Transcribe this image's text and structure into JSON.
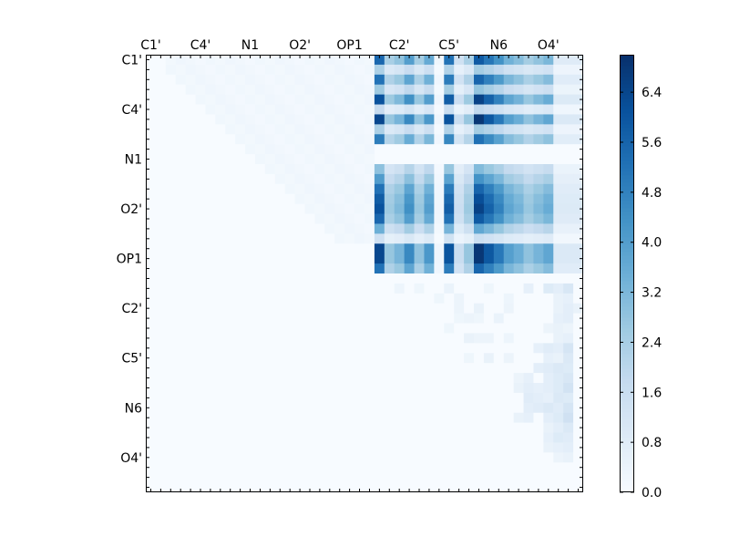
{
  "chart_data": {
    "type": "heatmap",
    "title": "",
    "xlabel": "",
    "ylabel": "",
    "n_rows": 44,
    "n_cols": 44,
    "x_tick_labels": [
      "C1'",
      "C4'",
      "N1",
      "O2'",
      "OP1",
      "C2'",
      "C5'",
      "N6",
      "O4'"
    ],
    "y_tick_labels": [
      "C1'",
      "C4'",
      "N1",
      "O2'",
      "OP1",
      "C2'",
      "C5'",
      "N6",
      "O4'"
    ],
    "tick_indices": [
      0,
      5,
      10,
      15,
      20,
      25,
      30,
      35,
      40
    ],
    "x_tick_position": "top",
    "colormap": "Blues",
    "colormap_low": "#f7fbff",
    "colormap_high": "#08306b",
    "colorbar": {
      "range": [
        0.0,
        7.0
      ],
      "ticks": [
        "0.0",
        "0.8",
        "1.6",
        "2.4",
        "3.2",
        "4.0",
        "4.8",
        "5.6",
        "6.4"
      ],
      "position": "right"
    },
    "grid": false,
    "main_block": {
      "rows": [
        0,
        21
      ],
      "cols": [
        23,
        40
      ],
      "column_pattern": [
        5.8,
        2.5,
        3.0,
        4.2,
        2.6,
        3.8,
        0.3,
        5.5,
        1.5,
        2.5,
        6.2,
        5.4,
        4.6,
        3.6,
        3.2,
        2.6,
        3.0,
        3.4
      ],
      "row_pattern": [
        0.95,
        0.4,
        0.9,
        0.45,
        1.05,
        0.3,
        1.1,
        0.4,
        0.85,
        0.3,
        0.3,
        0.5,
        0.7,
        0.9,
        1.0,
        1.05,
        0.95,
        0.6,
        0.25,
        1.1,
        1.1,
        0.9
      ],
      "empty_rows": [
        9,
        10
      ],
      "edge_cols": [
        41,
        42,
        43
      ],
      "edge_value": 0.9
    },
    "faint_upper_left": {
      "rows": [
        0,
        18
      ],
      "cols": [
        2,
        22
      ],
      "value": 0.15
    },
    "lower_right_band": {
      "rows": [
        23,
        40
      ],
      "cols": [
        24,
        43
      ],
      "values": [
        [
          23,
          25,
          0.35
        ],
        [
          23,
          27,
          0.3
        ],
        [
          23,
          30,
          0.45
        ],
        [
          23,
          34,
          0.3
        ],
        [
          23,
          38,
          0.6
        ],
        [
          23,
          40,
          0.9
        ],
        [
          23,
          41,
          0.7
        ],
        [
          23,
          42,
          1.1
        ],
        [
          24,
          29,
          0.3
        ],
        [
          24,
          31,
          0.4
        ],
        [
          24,
          36,
          0.35
        ],
        [
          24,
          41,
          0.5
        ],
        [
          24,
          42,
          0.6
        ],
        [
          25,
          31,
          0.4
        ],
        [
          25,
          33,
          0.5
        ],
        [
          25,
          36,
          0.4
        ],
        [
          25,
          41,
          0.5
        ],
        [
          25,
          42,
          0.7
        ],
        [
          25,
          43,
          0.5
        ],
        [
          26,
          31,
          0.3
        ],
        [
          26,
          32,
          0.4
        ],
        [
          26,
          33,
          0.3
        ],
        [
          26,
          35,
          0.45
        ],
        [
          26,
          41,
          0.6
        ],
        [
          26,
          42,
          0.7
        ],
        [
          27,
          30,
          0.3
        ],
        [
          27,
          40,
          0.4
        ],
        [
          27,
          41,
          0.5
        ],
        [
          27,
          42,
          0.4
        ],
        [
          28,
          32,
          0.5
        ],
        [
          28,
          33,
          0.4
        ],
        [
          28,
          34,
          0.4
        ],
        [
          28,
          36,
          0.35
        ],
        [
          28,
          41,
          0.5
        ],
        [
          28,
          42,
          0.6
        ],
        [
          29,
          39,
          0.6
        ],
        [
          29,
          40,
          0.8
        ],
        [
          29,
          41,
          0.7
        ],
        [
          29,
          42,
          1.2
        ],
        [
          30,
          32,
          0.3
        ],
        [
          30,
          34,
          0.5
        ],
        [
          30,
          36,
          0.4
        ],
        [
          30,
          40,
          0.6
        ],
        [
          30,
          41,
          0.5
        ],
        [
          30,
          42,
          1.0
        ],
        [
          31,
          39,
          0.7
        ],
        [
          31,
          40,
          0.8
        ],
        [
          31,
          41,
          1.0
        ],
        [
          31,
          42,
          0.9
        ],
        [
          32,
          37,
          0.4
        ],
        [
          32,
          38,
          0.6
        ],
        [
          32,
          40,
          0.7
        ],
        [
          32,
          41,
          0.9
        ],
        [
          32,
          42,
          1.1
        ],
        [
          33,
          37,
          0.5
        ],
        [
          33,
          38,
          0.7
        ],
        [
          33,
          39,
          0.6
        ],
        [
          33,
          40,
          0.7
        ],
        [
          33,
          41,
          0.9
        ],
        [
          33,
          42,
          1.3
        ],
        [
          34,
          38,
          0.8
        ],
        [
          34,
          39,
          0.7
        ],
        [
          34,
          40,
          0.6
        ],
        [
          34,
          41,
          1.0
        ],
        [
          34,
          42,
          0.9
        ],
        [
          35,
          38,
          0.7
        ],
        [
          35,
          39,
          0.8
        ],
        [
          35,
          40,
          1.0
        ],
        [
          35,
          41,
          0.8
        ],
        [
          35,
          42,
          1.2
        ],
        [
          36,
          37,
          0.5
        ],
        [
          36,
          38,
          0.6
        ],
        [
          36,
          40,
          0.7
        ],
        [
          36,
          41,
          0.9
        ],
        [
          36,
          42,
          1.4
        ],
        [
          37,
          40,
          0.5
        ],
        [
          37,
          41,
          0.7
        ],
        [
          37,
          42,
          1.0
        ],
        [
          38,
          40,
          0.6
        ],
        [
          38,
          41,
          0.9
        ],
        [
          38,
          42,
          0.8
        ],
        [
          39,
          40,
          0.5
        ],
        [
          39,
          41,
          0.6
        ],
        [
          39,
          42,
          0.7
        ],
        [
          40,
          41,
          0.4
        ],
        [
          40,
          42,
          0.5
        ]
      ]
    }
  }
}
